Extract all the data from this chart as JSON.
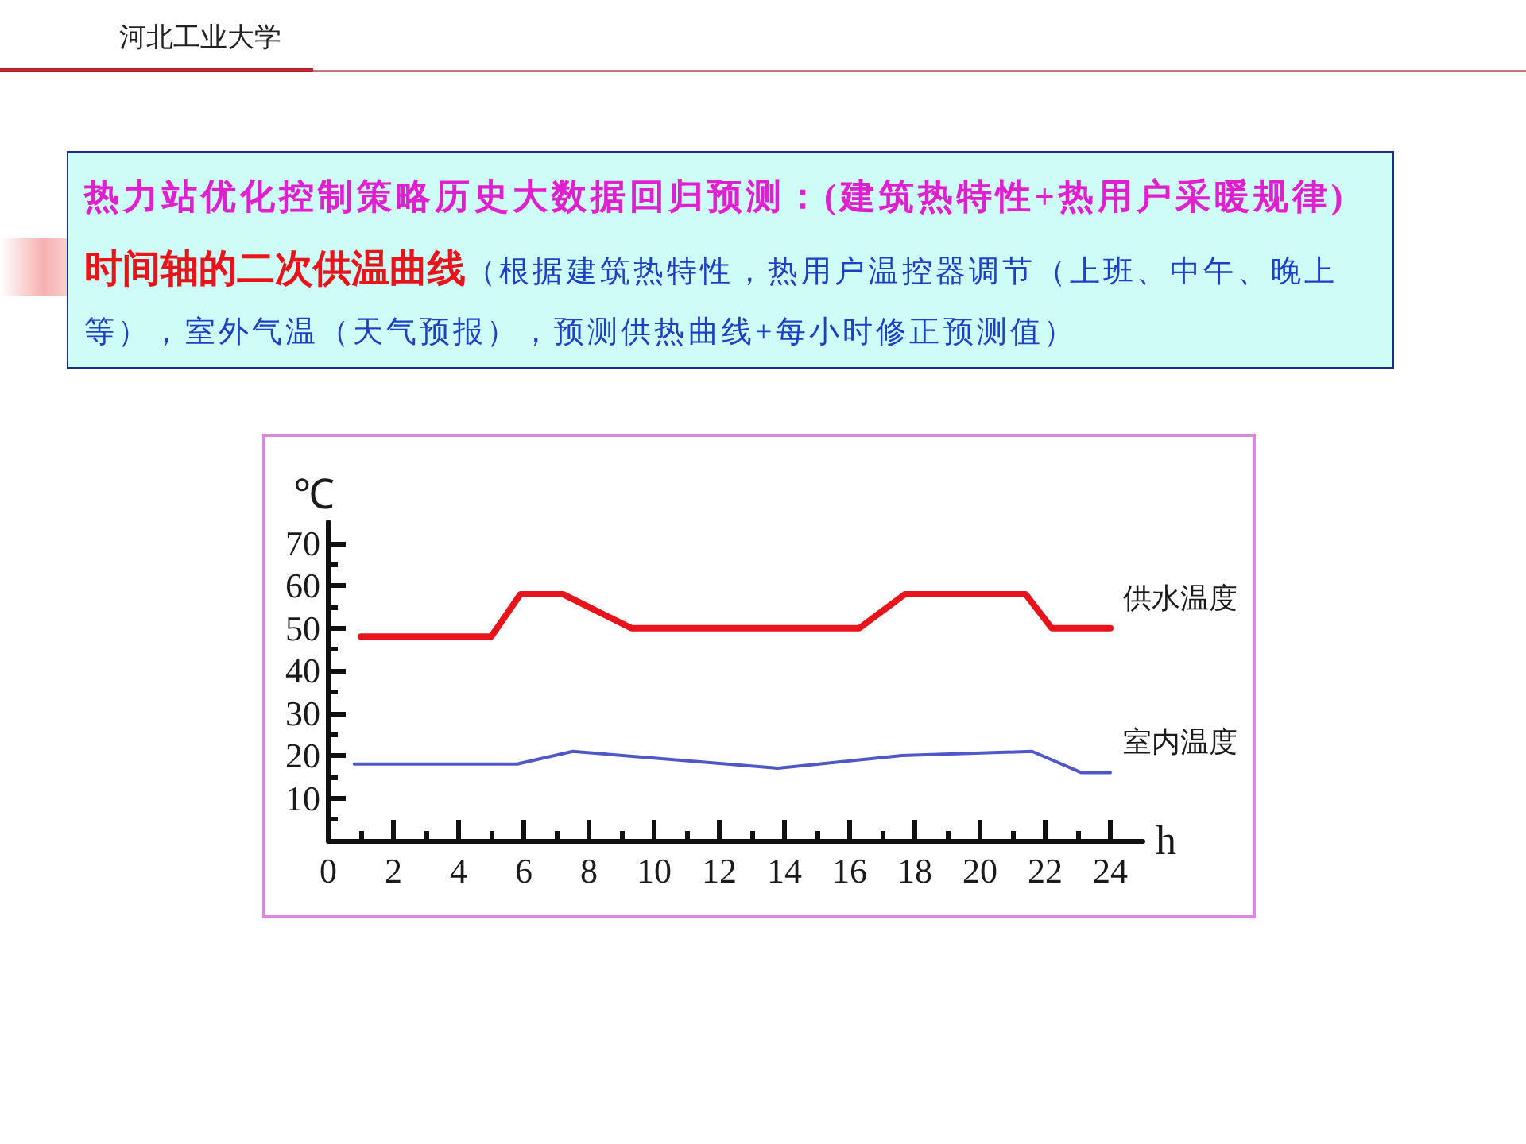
{
  "chart_data": {
    "type": "line",
    "title": "热力站优化控制策略历史大数据回归预测：(建筑热特性+热用户采暖规律)",
    "subtitle": "时间轴的二次供温曲线",
    "annotations": [
      "（根据建筑热特性，热用户温控器调节（上班、中午、晚上",
      "等），室外气温（天气预报），预测供热曲线+每小时修正预测值）",
      "河北工业大学"
    ],
    "xlabel": "h",
    "ylabel": "℃",
    "series": [
      {
        "name": "供水温度",
        "color": "#e8141b",
        "x": [
          1,
          5,
          5.9,
          7.2,
          9.3,
          16.3,
          17.7,
          21.4,
          22.2,
          24
        ],
        "values": [
          48,
          48,
          58,
          58,
          50,
          50,
          58,
          58,
          50,
          50
        ]
      },
      {
        "name": "室内温度",
        "color": "#4f58c8",
        "x": [
          0.8,
          5.8,
          7.5,
          13.8,
          17.6,
          21.6,
          23.1,
          24
        ],
        "values": [
          18,
          18,
          21,
          17,
          20,
          21,
          16,
          16
        ]
      }
    ],
    "xlim": [
      0,
      25
    ],
    "ylim": [
      0,
      75
    ],
    "xticks": [
      0,
      {
        "value": 1,
        "label": null
      },
      2,
      {
        "value": 3,
        "label": null
      },
      4,
      {
        "value": 5,
        "label": null
      },
      6,
      {
        "value": 7,
        "label": null
      },
      8,
      {
        "value": 9,
        "label": null
      },
      10,
      {
        "value": 11,
        "label": null
      },
      12,
      {
        "value": 13,
        "label": null
      },
      14,
      {
        "value": 15,
        "label": null
      },
      16,
      {
        "value": 17,
        "label": null
      },
      18,
      {
        "value": 19,
        "label": null
      },
      20,
      {
        "value": 21,
        "label": null
      },
      22,
      {
        "value": 23,
        "label": null
      },
      24
    ],
    "yticks": [
      {
        "value": 5,
        "label": null
      },
      10,
      {
        "value": 15,
        "label": null
      },
      20,
      {
        "value": 25,
        "label": null
      },
      30,
      {
        "value": 35,
        "label": null
      },
      40,
      {
        "value": 45,
        "label": null
      },
      50,
      {
        "value": 55,
        "label": null
      },
      60,
      {
        "value": 65,
        "label": null
      },
      70
    ],
    "grid": false,
    "legend": false,
    "marker": "none",
    "line_style": "solid"
  }
}
